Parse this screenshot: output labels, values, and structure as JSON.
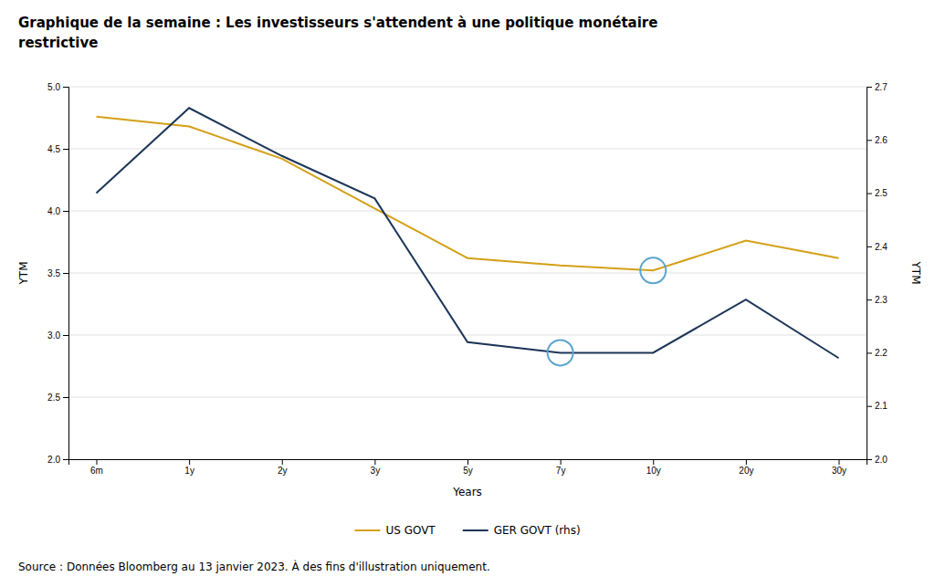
{
  "chart_data": {
    "type": "line",
    "title": [
      "Graphique de la semaine : Les investisseurs s'attendent à une politique monétaire",
      "restrictive"
    ],
    "x_label": "Years",
    "y_label": "YTM",
    "y2_label": "YTM",
    "categories": [
      "6m",
      "1y",
      "2y",
      "3y",
      "5y",
      "7y",
      "10y",
      "20y",
      "30y"
    ],
    "series": [
      {
        "name": "US GOVT",
        "color": "#D4A017",
        "values": [
          4.76,
          4.68,
          4.42,
          4.02,
          3.62,
          3.56,
          3.52,
          3.76,
          3.62
        ]
      },
      {
        "name": "GER GOVT (rhs)",
        "color": "#1C3557",
        "axis": "y2",
        "values": [
          2.5,
          2.66,
          2.57,
          2.49,
          2.22,
          2.2,
          2.2,
          2.3,
          2.19
        ]
      }
    ],
    "ylim": [
      2.0,
      5.0
    ],
    "yticks": [
      {
        "value": 2.0,
        "label": "2.0"
      },
      2.5,
      {
        "value": 3.0,
        "label": "3.0"
      },
      3.5,
      {
        "value": 4.0,
        "label": "4.0"
      },
      4.5,
      {
        "value": 5.0,
        "label": "5.0"
      }
    ],
    "y2lim": [
      2.0,
      2.7
    ],
    "y2ticks": [
      {
        "value": 2.0,
        "label": "2.0"
      },
      2.1,
      2.2,
      2.3,
      2.4,
      2.5,
      2.6,
      2.7
    ],
    "annotations": [
      {
        "type": "circle",
        "x": "10y",
        "y": 3.52,
        "color": "#5BA4CF"
      },
      {
        "type": "circle",
        "x": "7y",
        "y": 2.2,
        "axis": "y2",
        "color": "#5BA4CF"
      },
      {
        "text": "Source : Données Bloomberg au 13 janvier 2023. À des fins d'illustration uniquement."
      }
    ],
    "grid": true,
    "legend": "bottom"
  }
}
